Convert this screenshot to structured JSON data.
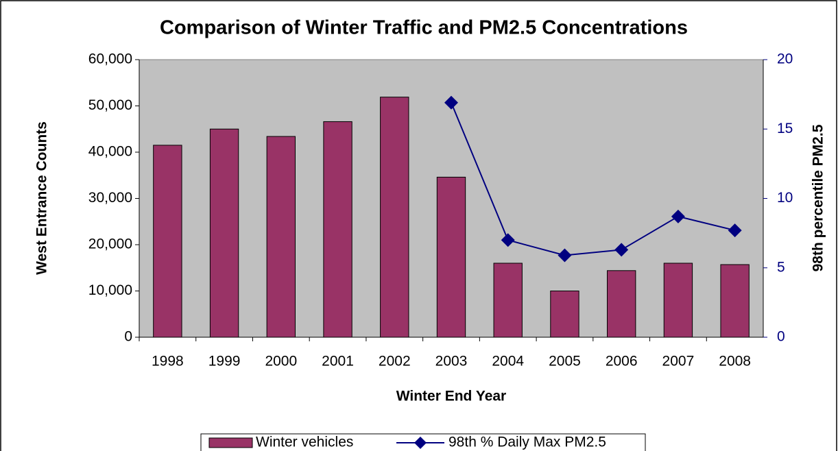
{
  "chart_data": {
    "type": "bar",
    "title": "Comparison of Winter Traffic and PM2.5  Concentrations",
    "x_label": "Winter End Year",
    "y_label": "West Entrance Counts",
    "y2_label": "98th percentile PM2.5",
    "categories": [
      "1998",
      "1999",
      "2000",
      "2001",
      "2002",
      "2003",
      "2004",
      "2005",
      "2006",
      "2007",
      "2008"
    ],
    "series": [
      {
        "name": "Winter vehicles",
        "type": "bar",
        "color": "#993366",
        "values": [
          41500,
          45000,
          43400,
          46600,
          51900,
          34600,
          16000,
          10000,
          14400,
          16000,
          15700
        ]
      },
      {
        "name": "98th % Daily Max PM2.5",
        "type": "line",
        "axis": "y2",
        "color": "#000080",
        "values": [
          null,
          null,
          null,
          null,
          null,
          16.9,
          7.0,
          5.9,
          6.3,
          8.7,
          7.7
        ]
      }
    ],
    "ylim": [
      0,
      60000
    ],
    "yticks": [
      0,
      {
        "value": 10000,
        "label": "10,000"
      },
      {
        "value": 20000,
        "label": "20,000"
      },
      {
        "value": 30000,
        "label": "30,000"
      },
      {
        "value": 40000,
        "label": "40,000"
      },
      {
        "value": 50000,
        "label": "50,000"
      },
      {
        "value": 60000,
        "label": "60,000"
      }
    ],
    "y2lim": [
      0,
      20
    ],
    "y2ticks": [
      0,
      5,
      10,
      15,
      20
    ],
    "legend": "bottom"
  }
}
